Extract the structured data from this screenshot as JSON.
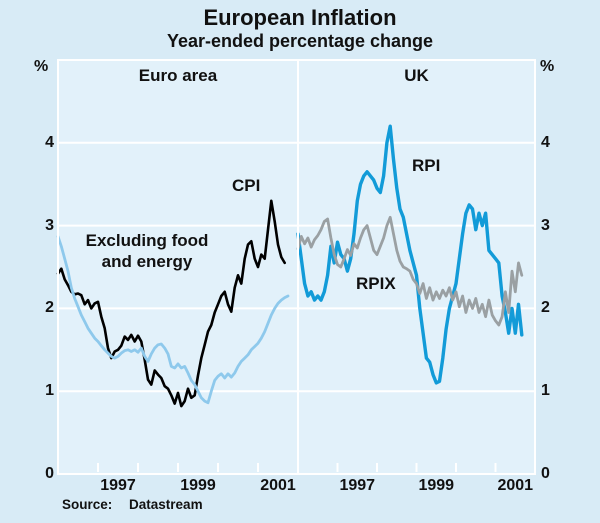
{
  "chart_data": {
    "type": "line",
    "title": "European Inflation",
    "subtitle": "Year-ended percentage change",
    "unit": "%",
    "frequency": "monthly",
    "start": {
      "year": 1996,
      "month": 1
    },
    "colors": {
      "plot_bg": "#e2f1fa",
      "grid": "#ffffff",
      "text": "#111111"
    },
    "y_axis": {
      "min": 0,
      "max": 5,
      "tick_values": [
        0,
        1,
        2,
        3,
        4
      ]
    },
    "x_axis": {
      "min_year": 1996,
      "max_year": 2002,
      "tick_years": [
        1997,
        1998,
        1999,
        2000,
        2001
      ],
      "labels": [
        "1997",
        "1999",
        "2001"
      ],
      "label_years": [
        1997.5,
        1999.5,
        2001.5
      ]
    },
    "panels": [
      {
        "title": "Euro area",
        "series": [
          {
            "label": "CPI",
            "data_name": "cpi-line",
            "color": "#000000",
            "width": 2.6,
            "values": [
              2.42,
              2.48,
              2.35,
              2.28,
              2.2,
              2.17,
              2.18,
              2.16,
              2.05,
              2.1,
              2.0,
              2.06,
              2.08,
              1.9,
              1.76,
              1.52,
              1.4,
              1.48,
              1.5,
              1.55,
              1.66,
              1.62,
              1.68,
              1.6,
              1.67,
              1.6,
              1.38,
              1.14,
              1.08,
              1.25,
              1.2,
              1.16,
              1.06,
              1.03,
              0.95,
              0.85,
              0.98,
              0.82,
              0.88,
              1.03,
              0.92,
              0.95,
              1.19,
              1.4,
              1.56,
              1.72,
              1.8,
              1.95,
              2.05,
              2.15,
              2.2,
              2.05,
              1.96,
              2.25,
              2.4,
              2.3,
              2.6,
              2.77,
              2.81,
              2.6,
              2.5,
              2.65,
              2.6,
              2.95,
              3.3,
              3.05,
              2.77,
              2.62,
              2.55
            ]
          },
          {
            "label": "Excluding food and energy",
            "data_name": "excluding-food-and-energy-line",
            "color": "#8ec9ec",
            "width": 2.8,
            "values": [
              2.87,
              2.75,
              2.6,
              2.45,
              2.25,
              2.12,
              2.02,
              1.92,
              1.84,
              1.76,
              1.7,
              1.64,
              1.6,
              1.55,
              1.5,
              1.46,
              1.42,
              1.4,
              1.42,
              1.46,
              1.49,
              1.5,
              1.48,
              1.5,
              1.47,
              1.52,
              1.42,
              1.36,
              1.45,
              1.52,
              1.56,
              1.57,
              1.52,
              1.45,
              1.3,
              1.28,
              1.33,
              1.28,
              1.3,
              1.22,
              1.13,
              1.08,
              1.0,
              0.92,
              0.88,
              0.86,
              1.0,
              1.13,
              1.18,
              1.21,
              1.16,
              1.21,
              1.17,
              1.22,
              1.3,
              1.36,
              1.4,
              1.44,
              1.5,
              1.54,
              1.58,
              1.64,
              1.72,
              1.82,
              1.92,
              2.0,
              2.06,
              2.1,
              2.13,
              2.15
            ]
          }
        ]
      },
      {
        "title": "UK",
        "series": [
          {
            "label": "RPI",
            "data_name": "rpi-line",
            "color": "#129bd8",
            "width": 3.4,
            "values": [
              2.9,
              2.6,
              2.3,
              2.15,
              2.2,
              2.1,
              2.15,
              2.1,
              2.2,
              2.4,
              2.75,
              2.55,
              2.8,
              2.65,
              2.6,
              2.45,
              2.6,
              2.9,
              3.3,
              3.5,
              3.6,
              3.65,
              3.6,
              3.55,
              3.45,
              3.4,
              3.6,
              4.0,
              4.2,
              3.8,
              3.45,
              3.2,
              3.1,
              2.9,
              2.7,
              2.55,
              2.4,
              2.0,
              1.7,
              1.4,
              1.35,
              1.2,
              1.1,
              1.12,
              1.4,
              1.75,
              2.0,
              2.15,
              2.3,
              2.6,
              2.9,
              3.15,
              3.25,
              3.2,
              2.95,
              3.15,
              3.0,
              3.15,
              2.7,
              2.65,
              2.6,
              2.55,
              2.15,
              1.95,
              1.7,
              2.0,
              1.7,
              2.05,
              1.68
            ]
          },
          {
            "label": "RPIX",
            "data_name": "rpix-line",
            "color": "#9aa0a3",
            "width": 2.8,
            "values": [
              2.72,
              2.87,
              2.78,
              2.85,
              2.74,
              2.83,
              2.88,
              2.95,
              3.05,
              3.08,
              2.85,
              2.65,
              2.53,
              2.5,
              2.6,
              2.71,
              2.64,
              2.78,
              2.73,
              2.85,
              2.95,
              3.0,
              2.85,
              2.7,
              2.65,
              2.75,
              2.85,
              3.0,
              3.1,
              2.9,
              2.7,
              2.57,
              2.5,
              2.48,
              2.45,
              2.35,
              2.3,
              2.18,
              2.3,
              2.12,
              2.25,
              2.1,
              2.2,
              2.12,
              2.22,
              2.15,
              2.25,
              2.1,
              2.2,
              2.02,
              2.15,
              1.95,
              2.1,
              2.0,
              2.12,
              1.95,
              2.05,
              1.9,
              2.1,
              1.92,
              1.85,
              1.8,
              1.9,
              2.2,
              1.95,
              2.45,
              2.2,
              2.55,
              2.4
            ]
          }
        ]
      }
    ],
    "source": {
      "label": "Source:",
      "value": "Datastream"
    }
  }
}
